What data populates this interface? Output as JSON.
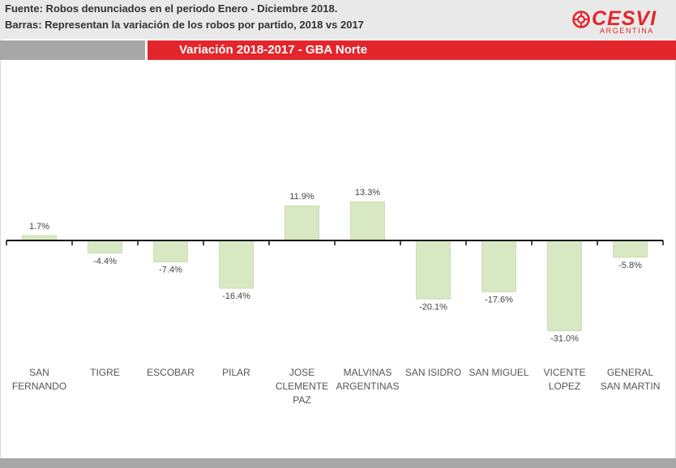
{
  "header": {
    "source_line": "Fuente: Robos denunciados en el periodo Enero - Diciembre 2018.",
    "bars_line": "Barras: Representan la variación de los robos por partido, 2018 vs 2017"
  },
  "logo": {
    "name": "CESVI",
    "subtitle": "ARGENTINA",
    "icon": "cesvi-logo-icon"
  },
  "colors": {
    "brand_red": "#e3262b",
    "bar_fill": "#d8e8c3",
    "header_gray": "#e9e9e9",
    "band_gray": "#a7a7a7"
  },
  "chart_data": {
    "type": "bar",
    "title": "Variación  2018-2017 - GBA Norte",
    "categories": [
      "SAN FERNANDO",
      "TIGRE",
      "ESCOBAR",
      "PILAR",
      "JOSE CLEMENTE PAZ",
      "MALVINAS ARGENTINAS",
      "SAN ISIDRO",
      "SAN MIGUEL",
      "VICENTE LOPEZ",
      "GENERAL SAN MARTIN"
    ],
    "category_lines": [
      [
        "SAN",
        "FERNANDO"
      ],
      [
        "TIGRE"
      ],
      [
        "ESCOBAR"
      ],
      [
        "PILAR"
      ],
      [
        "JOSE",
        "CLEMENTE",
        "PAZ"
      ],
      [
        "MALVINAS",
        "ARGENTINAS"
      ],
      [
        "SAN ISIDRO"
      ],
      [
        "SAN MIGUEL"
      ],
      [
        "VICENTE",
        "LOPEZ"
      ],
      [
        "GENERAL",
        "SAN MARTIN"
      ]
    ],
    "values": [
      1.7,
      -4.4,
      -7.4,
      -16.4,
      11.9,
      13.3,
      -20.1,
      -17.6,
      -31.0,
      -5.8
    ],
    "value_labels": [
      "1.7%",
      "-4.4%",
      "-7.4%",
      "-16.4%",
      "11.9%",
      "13.3%",
      "-20.1%",
      "-17.6%",
      "-31.0%",
      "-5.8%"
    ],
    "xlabel": "",
    "ylabel": "",
    "grid": false,
    "legend": "none"
  }
}
